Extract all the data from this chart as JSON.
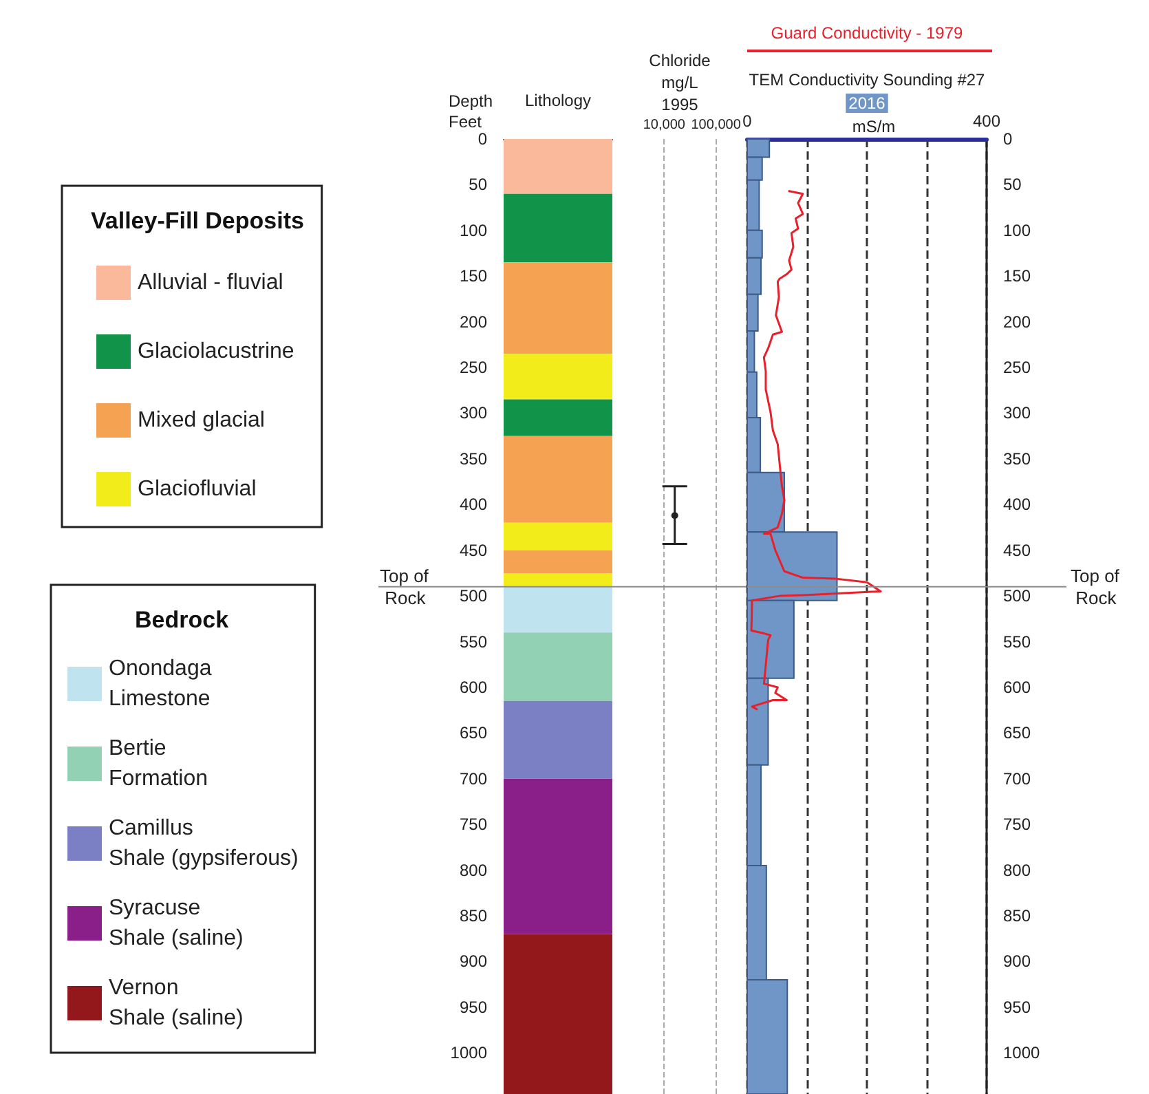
{
  "chart_data": [
    {
      "type": "bar",
      "stacked": true,
      "xlabel": "Lithology",
      "ylabel": "Depth Feet",
      "legend_title": "Valley-Fill Deposits",
      "annotations": [
        "Bedrock"
      ],
      "legend": "left",
      "tick_labels": "y",
      "categories": [
        null
      ],
      "series": [
        {
          "name": "Alluvial - fluvial",
          "color": "#f9b99a",
          "values": [
            60
          ]
        },
        {
          "name": "Glaciolacustrine",
          "color": "#12934a",
          "values": [
            75
          ]
        },
        {
          "name": "Mixed glacial",
          "color": "#f5a352",
          "values": [
            100
          ]
        },
        {
          "name": "Glaciofluvial",
          "color": "#f3ec1b",
          "values": [
            50
          ]
        },
        {
          "color": "#12934a",
          "values": [
            40
          ]
        },
        {
          "color": "#f5a352",
          "values": [
            95
          ]
        },
        {
          "color": "#f3ec1b",
          "values": [
            30
          ]
        },
        {
          "color": "#f5a352",
          "values": [
            25
          ]
        },
        {
          "color": "#f3ec1b",
          "values": [
            15
          ]
        },
        {
          "name": "Onondaga Limestone",
          "color": "#bfe3ef",
          "values": [
            50
          ]
        },
        {
          "name": "Bertie Formation",
          "color": "#93d1b5",
          "values": [
            75
          ]
        },
        {
          "name": "Camillus Shale (gypsiferous)",
          "color": "#7b7fc4",
          "values": [
            85
          ]
        },
        {
          "name": "Syracuse Shale (saline)",
          "color": "#8a1f8a",
          "values": [
            170
          ]
        },
        {
          "name": "Vernon Shale (saline)",
          "color": "#93181b",
          "values": [
            175
          ]
        }
      ],
      "ylim": [
        1045,
        0
      ],
      "yticks": [
        0,
        50,
        100,
        150,
        200,
        250,
        300,
        350,
        400,
        450,
        500,
        550,
        600,
        650,
        700,
        750,
        800,
        850,
        900,
        950,
        1000
      ],
      "ref_lines": [
        {
          "axis": "y",
          "value": 490,
          "label": "Top of Rock",
          "color": "#8c8c8c"
        }
      ]
    },
    {
      "type": "scatter",
      "orientation": "horizontal",
      "title": "Chloride",
      "subtitle": "mg/L",
      "annotations": [
        "1995"
      ],
      "marker": "circle",
      "log": "x",
      "grid": "x",
      "tick_labels": "x",
      "series": [
        {
          "color": "#222222",
          "x": [
            412
          ],
          "values": [
            16000
          ],
          "xerrors": [
            [
              380,
              443
            ]
          ]
        }
      ],
      "xlim": [
        1000,
        400000
      ],
      "xticks": [
        {
          "value": 10000,
          "label": "10,000"
        },
        {
          "value": 100000,
          "label": "100,000"
        }
      ],
      "ylim": [
        1045,
        0
      ],
      "ref_lines": [
        {
          "axis": "y",
          "value": 490,
          "label": null,
          "color": "#8c8c8c"
        }
      ]
    },
    {
      "type": "histogram",
      "orientation": "horizontal",
      "subtitle": "2016",
      "xlabel": "mS/m",
      "legend": "top",
      "grid": "x",
      "marker": "none",
      "line_style": "solid",
      "series": [
        {
          "type": "histogram",
          "name": "TEM Conductivity Sounding #27",
          "color": "#7096c8",
          "bins": [
            0,
            20,
            45,
            100,
            130,
            170,
            210,
            255,
            305,
            365,
            430,
            505,
            590,
            685,
            795,
            920,
            1045
          ],
          "values": [
            37,
            25,
            20,
            25,
            23,
            18,
            12,
            16,
            22,
            62,
            150,
            78,
            35,
            23,
            32,
            67
          ]
        },
        {
          "type": "line",
          "name": "Guard Conductivity - 1979",
          "color": "#e8202a",
          "x": [
            57,
            60,
            70,
            82,
            87,
            98,
            103,
            118,
            133,
            143,
            148,
            153,
            156,
            173,
            193,
            211,
            214,
            229,
            239,
            254,
            274,
            299,
            319,
            334,
            354,
            380,
            395,
            410,
            425,
            430,
            432,
            432,
            450,
            473,
            480,
            481,
            485,
            495,
            499,
            500,
            505,
            508,
            538,
            541,
            543,
            548,
            576,
            596,
            600,
            606,
            614,
            614,
            621,
            624
          ],
          "values": [
            70,
            93,
            85,
            93,
            81,
            85,
            74,
            77,
            70,
            74,
            66,
            54,
            51,
            53,
            48,
            58,
            43,
            35,
            28,
            31,
            31,
            39,
            43,
            51,
            54,
            58,
            62,
            58,
            51,
            35,
            28,
            39,
            47,
            62,
            93,
            146,
            200,
            223,
            100,
            54,
            8,
            8,
            7,
            28,
            39,
            35,
            31,
            28,
            51,
            47,
            66,
            43,
            8,
            16
          ]
        }
      ],
      "xlim": [
        0,
        400
      ],
      "xticks": [
        0,
        {
          "value": 100,
          "label": null
        },
        {
          "value": 200,
          "label": null
        },
        {
          "value": 300,
          "label": null
        },
        400
      ],
      "ylim": [
        1045,
        0
      ],
      "yticks": [
        0,
        50,
        100,
        150,
        200,
        250,
        300,
        350,
        400,
        450,
        500,
        550,
        600,
        650,
        700,
        750,
        800,
        850,
        900,
        950,
        1000
      ],
      "ref_lines": [
        {
          "axis": "y",
          "value": 490,
          "label": "Top of Rock",
          "color": "#8c8c8c"
        }
      ]
    }
  ]
}
